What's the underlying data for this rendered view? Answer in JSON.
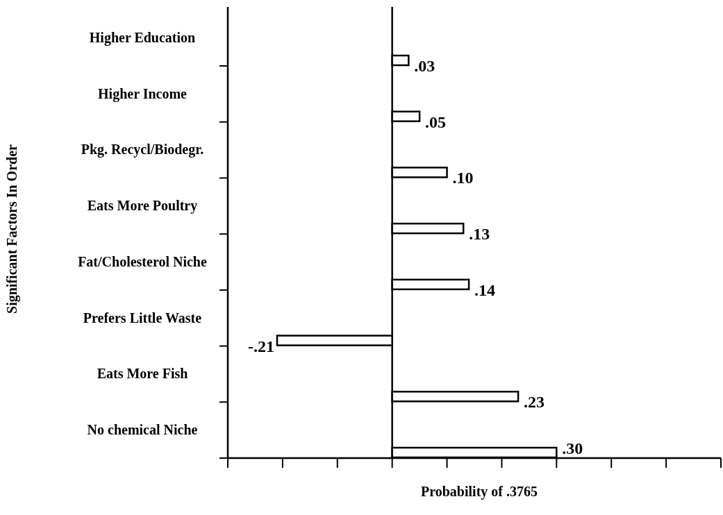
{
  "chart_data": {
    "type": "bar",
    "orientation": "horizontal",
    "ylabel": "Significant Factors In Order",
    "xlabel": "Probability of .3765",
    "categories": [
      "Higher Education",
      "Higher Income",
      "Pkg. Recycl/Biodegr.",
      "Eats More Poultry",
      "Fat/Cholesterol Niche",
      "Prefers Little Waste",
      "Eats More Fish",
      "No  chemical Niche"
    ],
    "values": [
      0.03,
      0.05,
      0.1,
      0.13,
      0.14,
      -0.21,
      0.23,
      0.3
    ],
    "value_labels": [
      ".03",
      ".05",
      ".10",
      ".13",
      ".14",
      "-.21",
      ".23",
      ".30"
    ],
    "color": "#ffffff",
    "xlim": [
      -0.3,
      0.6
    ],
    "xticks": [
      {
        "value": -0.3,
        "label": null
      },
      {
        "value": -0.2,
        "label": null
      },
      {
        "value": -0.1,
        "label": null
      },
      {
        "value": 0,
        "label": null
      },
      {
        "value": 0.1,
        "label": null
      },
      {
        "value": 0.2,
        "label": null
      },
      {
        "value": 0.3,
        "label": null
      },
      {
        "value": 0.4,
        "label": null
      },
      {
        "value": 0.5,
        "label": null
      },
      {
        "value": 0.6,
        "label": null
      }
    ],
    "tick_labels": "y",
    "ref_lines": [
      {
        "axis": "x",
        "value": 0
      }
    ],
    "grid": false
  }
}
